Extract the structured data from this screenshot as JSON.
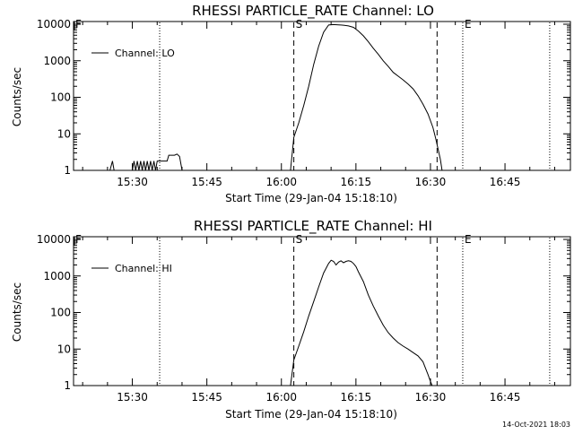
{
  "footer": {
    "timestamp": "14-Oct-2021 18:03"
  },
  "chart_data": [
    {
      "type": "line",
      "title": "RHESSI PARTICLE_RATE Channel: LO",
      "xlabel": "Start Time (29-Jan-04 15:18:10)",
      "ylabel": "Counts/sec",
      "yscale": "log",
      "ylim": [
        1,
        10000
      ],
      "xlim": [
        "15:18:10",
        "16:58:10"
      ],
      "x_ticks": [
        "15:30",
        "15:45",
        "16:00",
        "16:15",
        "16:30",
        "16:45"
      ],
      "y_ticks": [
        "1",
        "10",
        "100",
        "1000",
        "10000"
      ],
      "legend": {
        "position": "top-left",
        "entries": [
          "Channel: LO"
        ]
      },
      "markers": [
        {
          "label": "F",
          "time": "15:18:10",
          "style": "solid"
        },
        {
          "label": "",
          "time": "15:35:30",
          "style": "dotted"
        },
        {
          "label": "S",
          "time": "16:02:30",
          "style": "dashed"
        },
        {
          "label": "",
          "time": "16:31:20",
          "style": "dashed"
        },
        {
          "label": "E",
          "time": "16:36:30",
          "style": "dotted"
        },
        {
          "label": "",
          "time": "16:54:00",
          "style": "dotted"
        }
      ],
      "series": [
        {
          "name": "Channel: LO",
          "segments": [
            {
              "x": [
                "15:25:30",
                "15:26:00",
                "15:26:20"
              ],
              "y": [
                1,
                1.8,
                1
              ]
            },
            {
              "x": [
                "15:30:00",
                "15:30:20",
                "15:30:40",
                "15:31:00",
                "15:31:20",
                "15:31:40",
                "15:32:00",
                "15:32:20",
                "15:32:40",
                "15:33:00",
                "15:33:20",
                "15:33:40",
                "15:34:00",
                "15:34:20",
                "15:34:40",
                "15:35:00",
                "15:35:20",
                "15:36:00",
                "15:37:00",
                "15:37:20",
                "15:38:30",
                "15:39:00",
                "15:39:30",
                "15:40:00"
              ],
              "y": [
                1,
                1.8,
                1,
                1.8,
                1,
                1.8,
                1,
                1.8,
                1,
                1.8,
                1,
                1.8,
                1,
                1.8,
                1,
                1.8,
                1.8,
                1.8,
                1.8,
                2.6,
                2.6,
                2.8,
                2.4,
                1
              ]
            },
            {
              "x": [
                "16:01:50",
                "16:02:30",
                "16:03:30",
                "16:04:30",
                "16:05:30",
                "16:06:30",
                "16:07:30",
                "16:08:30",
                "16:09:30",
                "16:10:30",
                "16:11:30",
                "16:12:30",
                "16:13:30",
                "16:14:30",
                "16:15:30",
                "16:16:30",
                "16:17:30",
                "16:18:30",
                "16:19:30",
                "16:20:30",
                "16:21:30",
                "16:22:30",
                "16:23:30",
                "16:24:30",
                "16:25:30",
                "16:26:30",
                "16:27:30",
                "16:28:30",
                "16:29:30",
                "16:30:30",
                "16:31:00",
                "16:31:30",
                "16:32:00",
                "16:32:20"
              ],
              "y": [
                1,
                8,
                20,
                60,
                200,
                800,
                2500,
                6000,
                9500,
                9800,
                9600,
                9400,
                9000,
                8200,
                6500,
                4800,
                3300,
                2200,
                1500,
                1000,
                700,
                480,
                380,
                300,
                230,
                170,
                110,
                65,
                35,
                15,
                8,
                4,
                2,
                1
              ]
            }
          ]
        }
      ]
    },
    {
      "type": "line",
      "title": "RHESSI PARTICLE_RATE Channel: HI",
      "xlabel": "Start Time (29-Jan-04 15:18:10)",
      "ylabel": "Counts/sec",
      "yscale": "log",
      "ylim": [
        1,
        10000
      ],
      "xlim": [
        "15:18:10",
        "16:58:10"
      ],
      "x_ticks": [
        "15:30",
        "15:45",
        "16:00",
        "16:15",
        "16:30",
        "16:45"
      ],
      "y_ticks": [
        "1",
        "10",
        "100",
        "1000",
        "10000"
      ],
      "legend": {
        "position": "top-left",
        "entries": [
          "Channel: HI"
        ]
      },
      "markers": [
        {
          "label": "F",
          "time": "15:18:10",
          "style": "solid"
        },
        {
          "label": "",
          "time": "15:35:30",
          "style": "dotted"
        },
        {
          "label": "S",
          "time": "16:02:30",
          "style": "dashed"
        },
        {
          "label": "",
          "time": "16:31:20",
          "style": "dashed"
        },
        {
          "label": "E",
          "time": "16:36:30",
          "style": "dotted"
        },
        {
          "label": "",
          "time": "16:54:00",
          "style": "dotted"
        }
      ],
      "series": [
        {
          "name": "Channel: HI",
          "segments": [
            {
              "x": [
                "16:01:50",
                "16:02:30",
                "16:03:30",
                "16:04:30",
                "16:05:30",
                "16:06:30",
                "16:07:30",
                "16:08:30",
                "16:09:30",
                "16:10:00",
                "16:10:30",
                "16:11:00",
                "16:11:30",
                "16:12:00",
                "16:12:30",
                "16:13:00",
                "16:13:30",
                "16:14:00",
                "16:14:30",
                "16:15:00",
                "16:15:30",
                "16:16:30",
                "16:17:30",
                "16:18:30",
                "16:19:30",
                "16:20:30",
                "16:21:30",
                "16:22:30",
                "16:23:30",
                "16:24:30",
                "16:25:30",
                "16:26:30",
                "16:27:30",
                "16:28:30",
                "16:29:00",
                "16:29:30",
                "16:30:00",
                "16:30:20"
              ],
              "y": [
                1,
                5,
                12,
                30,
                80,
                200,
                500,
                1200,
                2200,
                2700,
                2500,
                2000,
                2400,
                2600,
                2300,
                2500,
                2600,
                2500,
                2200,
                1800,
                1300,
                700,
                300,
                150,
                80,
                45,
                28,
                20,
                15,
                12,
                10,
                8,
                6.5,
                4.5,
                3,
                2,
                1.3,
                1
              ]
            }
          ]
        }
      ]
    }
  ]
}
